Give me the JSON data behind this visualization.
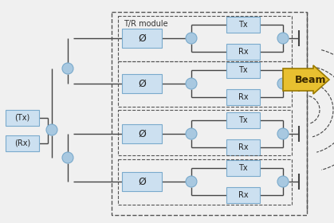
{
  "bg_color": "#f0f0f0",
  "box_fill": "#cce0f0",
  "box_edge": "#7aaacc",
  "line_color": "#444444",
  "circle_fill": "#a8c8e0",
  "circle_edge": "#7aaacc",
  "arrow_fill": "#e8c030",
  "arrow_edge": "#9a7a00",
  "dashed_color": "#555555",
  "title": "T/R module",
  "title_fontsize": 7,
  "label_fontsize": 7,
  "beam_fontsize": 9,
  "Tx_label": "Tx",
  "Rx_label": "Rx",
  "phase_label": "Ø",
  "beam_label": "Beam",
  "input_labels": [
    "(Tx)",
    "(Rx)"
  ]
}
